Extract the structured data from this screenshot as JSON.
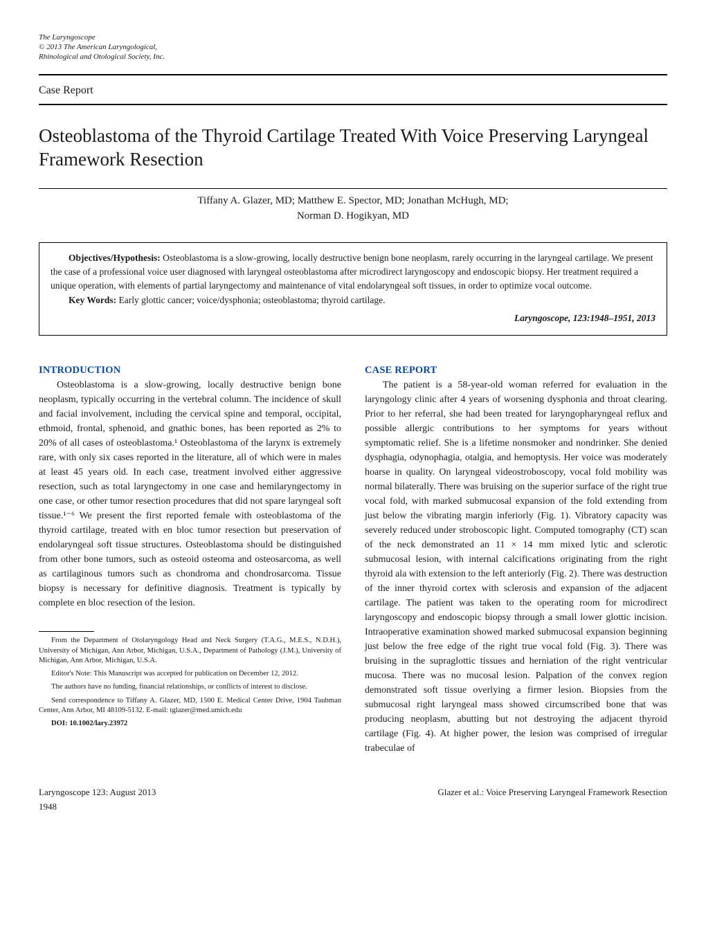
{
  "journal_note": {
    "title_italic": "The Laryngoscope",
    "copyright": "© 2013 The American Laryngological,",
    "society": "Rhinological and Otological Society, Inc."
  },
  "category_label": "Case Report",
  "title": "Osteoblastoma of the Thyroid Cartilage Treated With Voice Preserving Laryngeal Framework Resection",
  "authors_line1": "Tiffany A. Glazer, MD; Matthew E. Spector, MD; Jonathan McHugh, MD;",
  "authors_line2": "Norman D. Hogikyan, MD",
  "abstract": {
    "obj_label": "Objectives/Hypothesis:",
    "obj_text": " Osteoblastoma is a slow-growing, locally destructive benign bone neoplasm, rarely occurring in the laryngeal cartilage. We present the case of a professional voice user diagnosed with laryngeal osteoblastoma after microdirect laryngoscopy and endoscopic biopsy. Her treatment required a unique operation, with elements of partial laryngectomy and maintenance of vital endolaryngeal soft tissues, in order to optimize vocal outcome.",
    "kw_label": "Key Words:",
    "kw_text": " Early glottic cancer; voice/dysphonia; osteoblastoma; thyroid cartilage.",
    "citation": "Laryngoscope, 123:1948–1951, 2013"
  },
  "intro": {
    "heading": "INTRODUCTION",
    "para": "Osteoblastoma is a slow-growing, locally destructive benign bone neoplasm, typically occurring in the vertebral column. The incidence of skull and facial involvement, including the cervical spine and temporal, occipital, ethmoid, frontal, sphenoid, and gnathic bones, has been reported as 2% to 20% of all cases of osteoblastoma.¹ Osteoblastoma of the larynx is extremely rare, with only six cases reported in the literature, all of which were in males at least 45 years old. In each case, treatment involved either aggressive resection, such as total laryngectomy in one case and hemilaryngectomy in one case, or other tumor resection procedures that did not spare laryngeal soft tissue.¹⁻⁶ We present the first reported female with osteoblastoma of the thyroid cartilage, treated with en bloc tumor resection but preservation of endolaryngeal soft tissue structures. Osteoblastoma should be distinguished from other bone tumors, such as osteoid osteoma and osteosarcoma, as well as cartilaginous tumors such as chondroma and chondrosarcoma. Tissue biopsy is necessary for definitive diagnosis. Treatment is typically by complete en bloc resection of the lesion."
  },
  "case": {
    "heading": "CASE REPORT",
    "para": "The patient is a 58-year-old woman referred for evaluation in the laryngology clinic after 4 years of worsening dysphonia and throat clearing. Prior to her referral, she had been treated for laryngopharyngeal reflux and possible allergic contributions to her symptoms for years without symptomatic relief. She is a lifetime nonsmoker and nondrinker. She denied dysphagia, odynophagia, otalgia, and hemoptysis. Her voice was moderately hoarse in quality. On laryngeal videostroboscopy, vocal fold mobility was normal bilaterally. There was bruising on the superior surface of the right true vocal fold, with marked submucosal expansion of the fold extending from just below the vibrating margin inferiorly (Fig. 1). Vibratory capacity was severely reduced under stroboscopic light. Computed tomography (CT) scan of the neck demonstrated an 11 × 14 mm mixed lytic and sclerotic submucosal lesion, with internal calcifications originating from the right thyroid ala with extension to the left anteriorly (Fig. 2). There was destruction of the inner thyroid cortex with sclerosis and expansion of the adjacent cartilage. The patient was taken to the operating room for microdirect laryngoscopy and endoscopic biopsy through a small lower glottic incision. Intraoperative examination showed marked submucosal expansion beginning just below the free edge of the right true vocal fold (Fig. 3). There was bruising in the supraglottic tissues and herniation of the right ventricular mucosa. There was no mucosal lesion. Palpation of the convex region demonstrated soft tissue overlying a firmer lesion. Biopsies from the submucosal right laryngeal mass showed circumscribed bone that was producing neoplasm, abutting but not destroying the adjacent thyroid cartilage (Fig. 4). At higher power, the lesion was comprised of irregular trabeculae of"
  },
  "footnotes": {
    "from": "From the Department of Otolaryngology Head and Neck Surgery (T.A.G., M.E.S., N.D.H.), University of Michigan, Ann Arbor, Michigan, U.S.A., Department of Pathology (J.M.), University of Michigan, Ann Arbor, Michigan, U.S.A.",
    "editor": "Editor's Note: This Manuscript was accepted for publication on December 12, 2012.",
    "funding": "The authors have no funding, financial relationships, or conflicts of interest to disclose.",
    "corr": "Send correspondence to Tiffany A. Glazer, MD, 1500 E. Medical Center Drive, 1904 Taubman Center, Ann Arbor, MI 48109-5132. E-mail: tglazer@med.umich.edu",
    "doi": "DOI: 10.1002/lary.23972"
  },
  "footer": {
    "left": "Laryngoscope 123: August 2013",
    "right": "Glazer et al.: Voice Preserving Laryngeal Framework Resection",
    "page": "1948"
  },
  "colors": {
    "heading_blue": "#0a4aa0",
    "text": "#1a1a1a",
    "bg": "#ffffff"
  }
}
